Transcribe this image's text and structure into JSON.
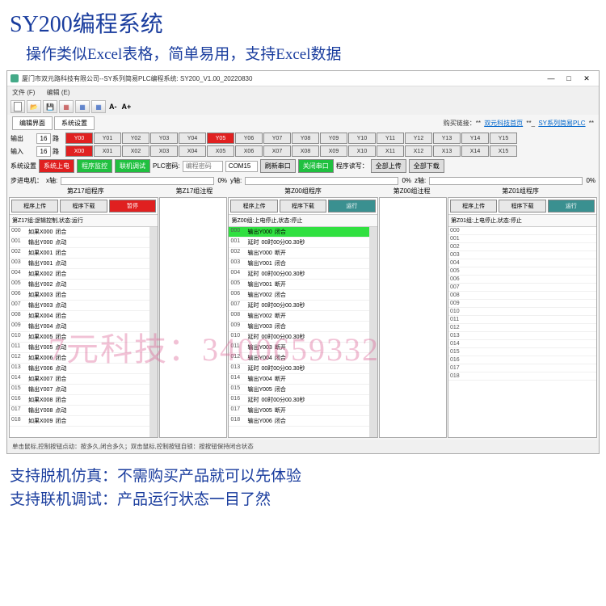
{
  "promo": {
    "title": "SY200编程系统",
    "subtitle": "操作类似Excel表格，简单易用，支持Excel数据",
    "bottom1": "支持脱机仿真：不需购买产品就可以先体验",
    "bottom2": "支持联机调试：产品运行状态一目了然"
  },
  "watermark": "7元科技：3400659332",
  "window": {
    "title": "厦门市双元路科技有限公司--SY系列简易PLC编程系统: SY200_V1.00_20220830",
    "menu_file": "文件 (F)",
    "menu_edit": "编辑 (E)"
  },
  "toolbar": {
    "font_dec": "A-",
    "font_inc": "A+"
  },
  "tabs": {
    "tab1": "编辑界面",
    "tab2": "系统设置",
    "right_label": "购买链接：",
    "link1": "双元科技首页",
    "link2": "SY系列简易PLC"
  },
  "io": {
    "out_label": "输出",
    "in_label": "输入",
    "count": "16",
    "route": "路",
    "outputs": [
      "Y00",
      "Y01",
      "Y02",
      "Y03",
      "Y04",
      "Y05",
      "Y06",
      "Y07",
      "Y08",
      "Y09",
      "Y10",
      "Y11",
      "Y12",
      "Y13",
      "Y14",
      "Y15"
    ],
    "out_red": [
      0,
      5
    ],
    "inputs": [
      "X00",
      "X01",
      "X02",
      "X03",
      "X04",
      "X05",
      "X06",
      "X07",
      "X08",
      "X09",
      "X10",
      "X11",
      "X12",
      "X13",
      "X14",
      "X15"
    ],
    "in_red": [
      0
    ]
  },
  "settings": {
    "label": "系统设置",
    "btn_power": "系统上电",
    "btn_monitor": "程序监控",
    "btn_debug": "联机调试",
    "plc_pwd": "PLC密码:",
    "pwd_ph": "编程密码",
    "com": "COM15",
    "refresh": "刷新串口",
    "close_port": "关闭串口",
    "rw_label": "程序读写：",
    "upload": "全部上传",
    "download": "全部下载"
  },
  "motor": {
    "label": "步进电机：",
    "x": "x轴:",
    "y": "y轴:",
    "z": "z轴:",
    "pct": "0%"
  },
  "panels": {
    "p1": {
      "title": "第Z17组程序",
      "title2": "第Z17组注程",
      "btn_up": "程序上传",
      "btn_dn": "程序下载",
      "btn_pause": "暂停",
      "status": "第Z17组:逻辑控制,状态:运行",
      "rows": [
        [
          "000",
          "如果X000",
          "闭合"
        ],
        [
          "001",
          "输出Y000",
          "点动"
        ],
        [
          "002",
          "如果X001",
          "闭合"
        ],
        [
          "003",
          "输出Y001",
          "点动"
        ],
        [
          "004",
          "如果X002",
          "闭合"
        ],
        [
          "005",
          "输出Y002",
          "点动"
        ],
        [
          "006",
          "如果X003",
          "闭合"
        ],
        [
          "007",
          "输出Y003",
          "点动"
        ],
        [
          "008",
          "如果X004",
          "闭合"
        ],
        [
          "009",
          "输出Y004",
          "点动"
        ],
        [
          "010",
          "如果X005",
          "闭合"
        ],
        [
          "011",
          "输出Y005",
          "点动"
        ],
        [
          "012",
          "如果X006",
          "闭合"
        ],
        [
          "013",
          "输出Y006",
          "点动"
        ],
        [
          "014",
          "如果X007",
          "闭合"
        ],
        [
          "015",
          "输出Y007",
          "点动"
        ],
        [
          "016",
          "如果X008",
          "闭合"
        ],
        [
          "017",
          "输出Y008",
          "点动"
        ],
        [
          "018",
          "如果X009",
          "闭合"
        ]
      ]
    },
    "p2": {
      "title": "第Z00组程序",
      "title2": "第Z00组注程",
      "btn_up": "程序上传",
      "btn_dn": "程序下载",
      "btn_run": "运行",
      "status": "第Z00组:上电停止,状态:停止",
      "rows": [
        [
          "000",
          "输出Y000",
          "闭合"
        ],
        [
          "001",
          "延时",
          "00时00分00.30秒"
        ],
        [
          "002",
          "输出Y000",
          "断开"
        ],
        [
          "003",
          "输出Y001",
          "闭合"
        ],
        [
          "004",
          "延时",
          "00时00分00.30秒"
        ],
        [
          "005",
          "输出Y001",
          "断开"
        ],
        [
          "006",
          "输出Y002",
          "闭合"
        ],
        [
          "007",
          "延时",
          "00时00分00.30秒"
        ],
        [
          "008",
          "输出Y002",
          "断开"
        ],
        [
          "009",
          "输出Y003",
          "闭合"
        ],
        [
          "010",
          "延时",
          "00时00分00.30秒"
        ],
        [
          "011",
          "输出Y003",
          "断开"
        ],
        [
          "012",
          "输出Y004",
          "闭合"
        ],
        [
          "013",
          "延时",
          "00时00分00.30秒"
        ],
        [
          "014",
          "输出Y004",
          "断开"
        ],
        [
          "015",
          "输出Y005",
          "闭合"
        ],
        [
          "016",
          "延时",
          "00时00分00.30秒"
        ],
        [
          "017",
          "输出Y005",
          "断开"
        ],
        [
          "018",
          "输出Y006",
          "闭合"
        ]
      ],
      "hl": 0
    },
    "p3": {
      "title": "第Z01组程序",
      "btn_up": "程序上传",
      "btn_dn": "程序下载",
      "btn_run": "运行",
      "status": "第Z01组:上电停止,状态:停止",
      "rows": [
        [
          "000",
          ""
        ],
        [
          "001",
          ""
        ],
        [
          "002",
          ""
        ],
        [
          "003",
          ""
        ],
        [
          "004",
          ""
        ],
        [
          "005",
          ""
        ],
        [
          "006",
          ""
        ],
        [
          "007",
          ""
        ],
        [
          "008",
          ""
        ],
        [
          "009",
          ""
        ],
        [
          "010",
          ""
        ],
        [
          "011",
          ""
        ],
        [
          "012",
          ""
        ],
        [
          "013",
          ""
        ],
        [
          "014",
          ""
        ],
        [
          "015",
          ""
        ],
        [
          "016",
          ""
        ],
        [
          "017",
          ""
        ],
        [
          "018",
          ""
        ]
      ]
    }
  },
  "hint": "单击鼠标,控制按钮点动：按多久,闭合多久；双击鼠标,控制按钮自锁：按按钮保持闭合状态"
}
